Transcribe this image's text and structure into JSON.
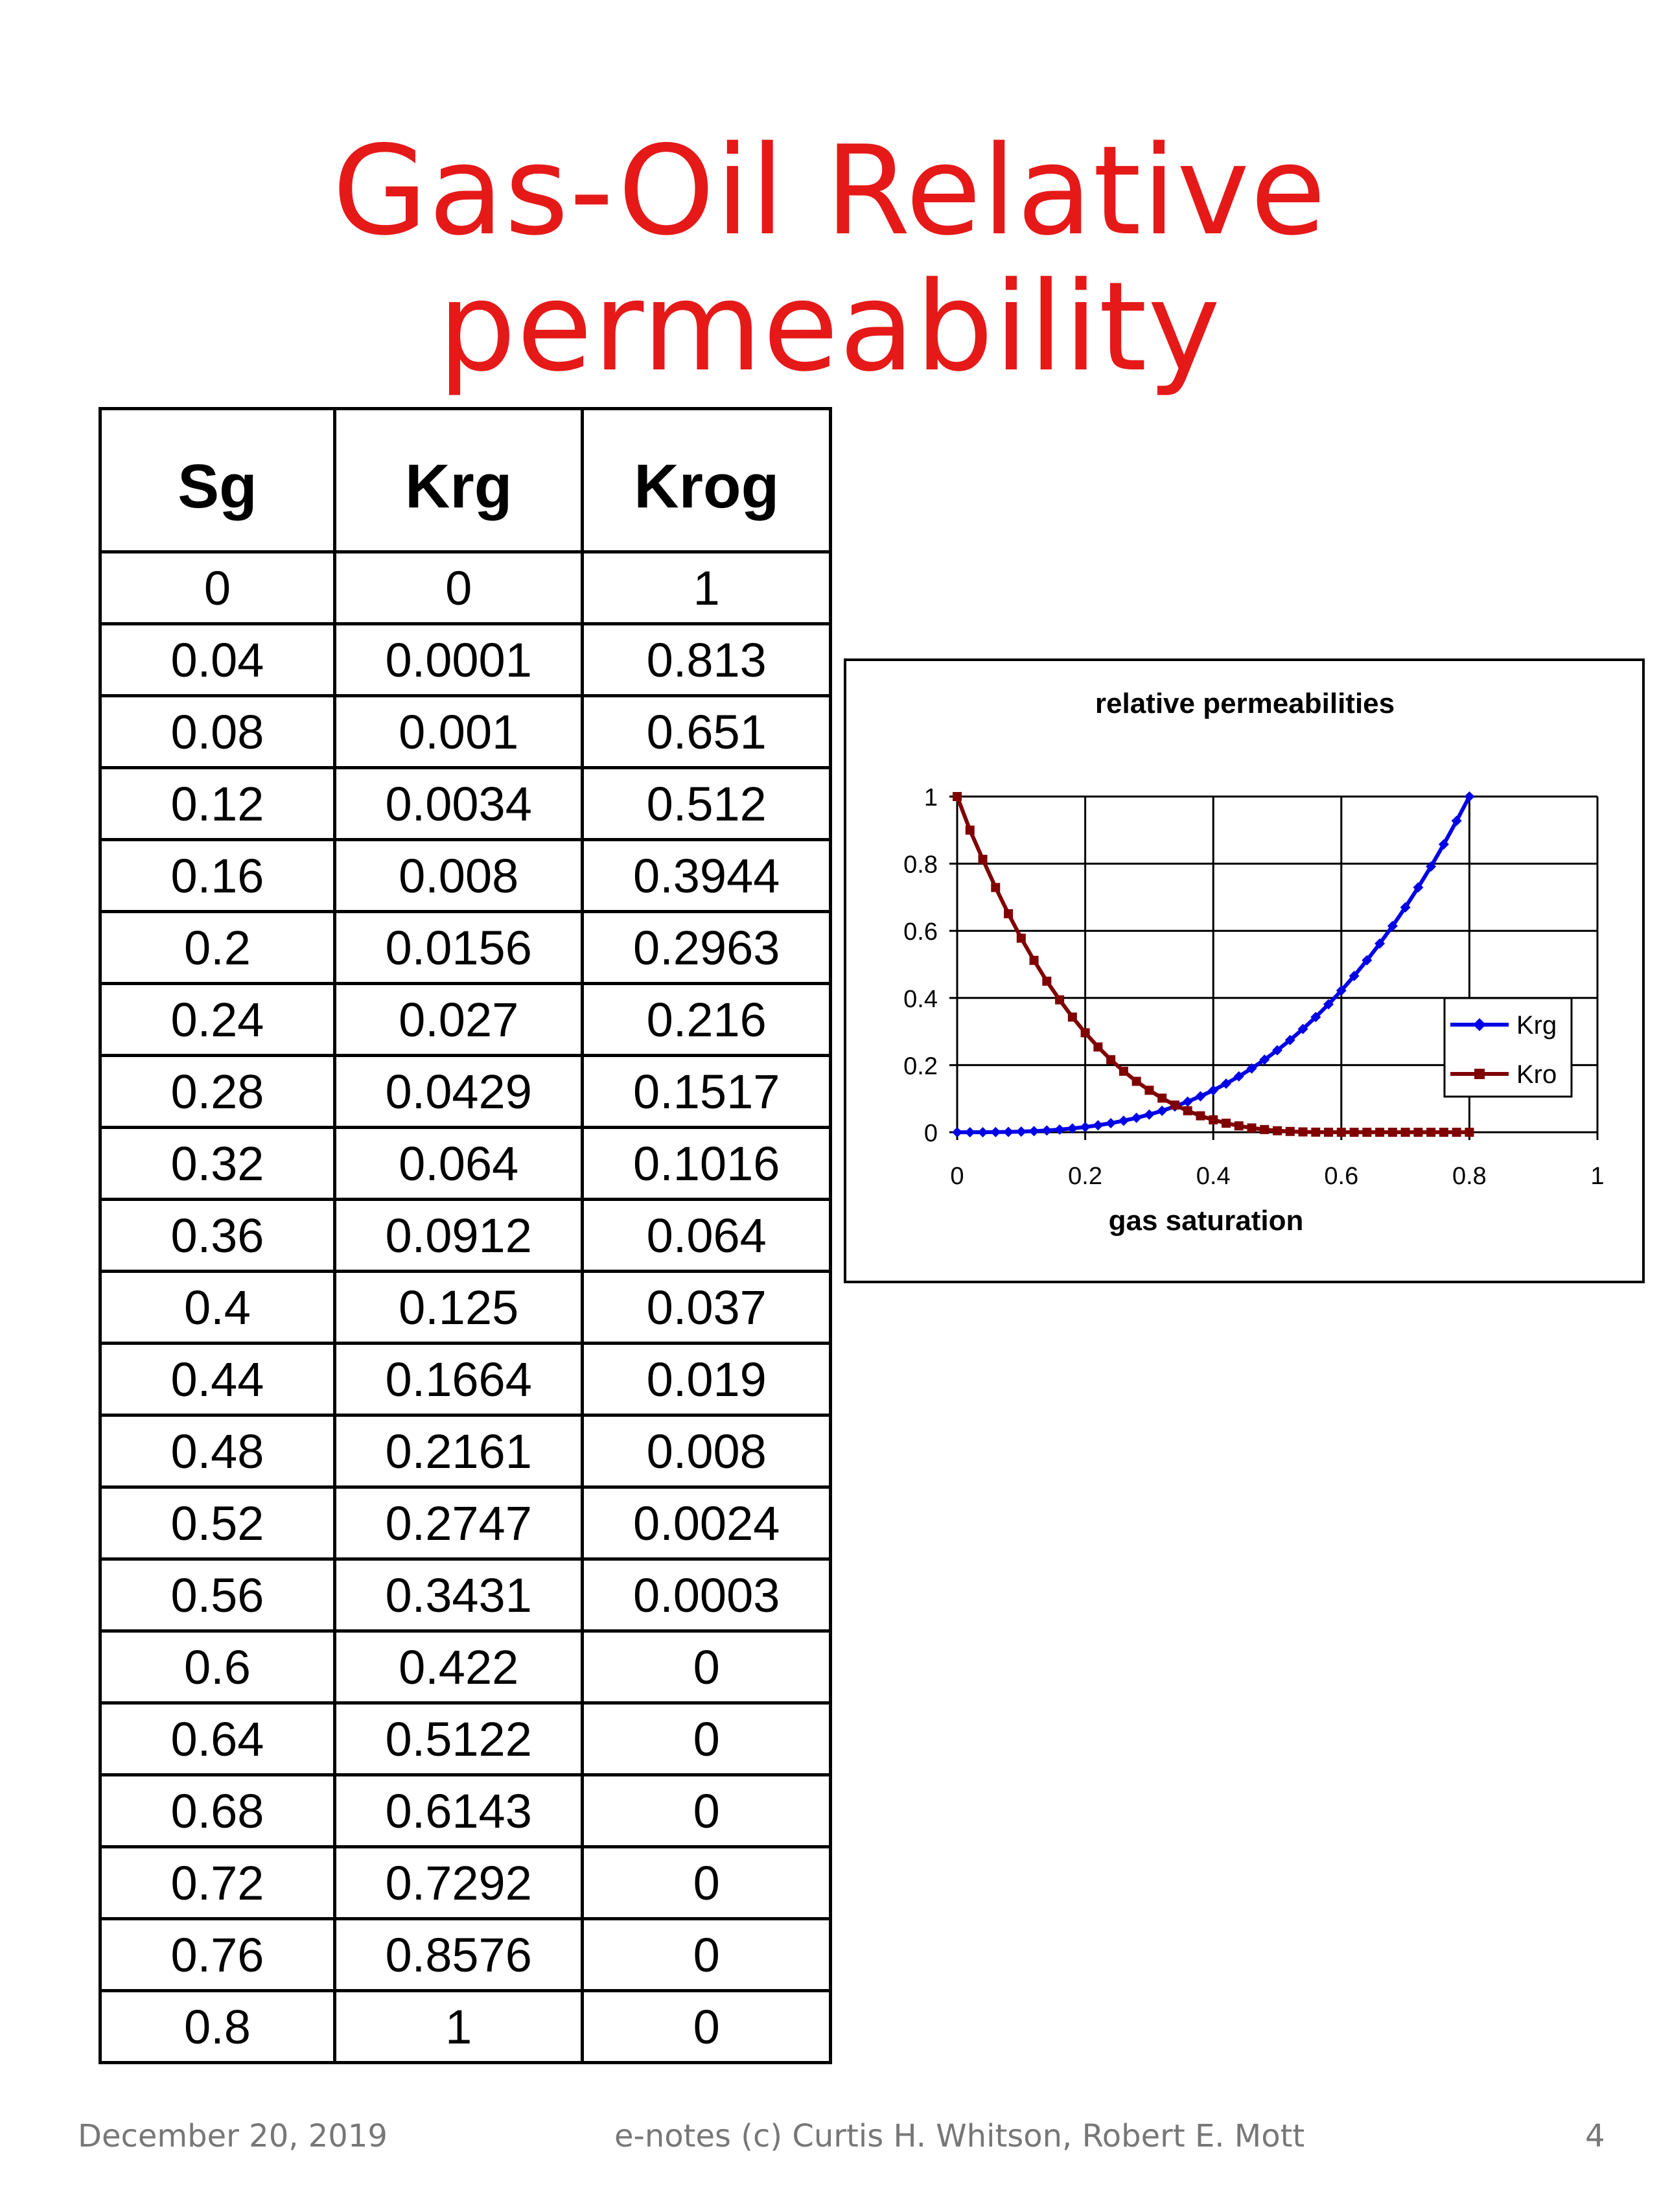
{
  "slide": {
    "title_line1": "Gas-Oil Relative",
    "title_line2": "permeability",
    "footer_date": "December 20, 2019",
    "footer_credit": "e-notes (c) Curtis H. Whitson, Robert E. Mott",
    "page_number": "4",
    "title_color": "#e61919"
  },
  "table": {
    "headers": [
      "Sg",
      "Krg",
      "Krog"
    ],
    "rows": [
      [
        "0",
        "0",
        "1"
      ],
      [
        "0.04",
        "0.0001",
        "0.813"
      ],
      [
        "0.08",
        "0.001",
        "0.651"
      ],
      [
        "0.12",
        "0.0034",
        "0.512"
      ],
      [
        "0.16",
        "0.008",
        "0.3944"
      ],
      [
        "0.2",
        "0.0156",
        "0.2963"
      ],
      [
        "0.24",
        "0.027",
        "0.216"
      ],
      [
        "0.28",
        "0.0429",
        "0.1517"
      ],
      [
        "0.32",
        "0.064",
        "0.1016"
      ],
      [
        "0.36",
        "0.0912",
        "0.064"
      ],
      [
        "0.4",
        "0.125",
        "0.037"
      ],
      [
        "0.44",
        "0.1664",
        "0.019"
      ],
      [
        "0.48",
        "0.2161",
        "0.008"
      ],
      [
        "0.52",
        "0.2747",
        "0.0024"
      ],
      [
        "0.56",
        "0.3431",
        "0.0003"
      ],
      [
        "0.6",
        "0.422",
        "0"
      ],
      [
        "0.64",
        "0.5122",
        "0"
      ],
      [
        "0.68",
        "0.6143",
        "0"
      ],
      [
        "0.72",
        "0.7292",
        "0"
      ],
      [
        "0.76",
        "0.8576",
        "0"
      ],
      [
        "0.8",
        "1",
        "0"
      ]
    ]
  },
  "chart_data": {
    "type": "line",
    "title": "relative permeabilities",
    "xlabel": "gas saturation",
    "ylabel": "",
    "xlim": [
      0,
      1
    ],
    "ylim": [
      0,
      1
    ],
    "xticks": [
      0,
      0.2,
      0.4,
      0.6,
      0.8,
      1
    ],
    "xtick_labels": [
      "0",
      "0.2",
      "0.4",
      "0.6",
      "0.8",
      "1"
    ],
    "yticks": [
      0,
      0.2,
      0.4,
      0.6,
      0.8,
      1
    ],
    "ytick_labels": [
      "0",
      "0.2",
      "0.4",
      "0.6",
      "0.8",
      "1"
    ],
    "grid": true,
    "legend": "right",
    "series": [
      {
        "name": "Krg",
        "color": "#0000e6",
        "marker": "diamond",
        "x": [
          0,
          0.02,
          0.04,
          0.06,
          0.08,
          0.1,
          0.12,
          0.14,
          0.16,
          0.18,
          0.2,
          0.22,
          0.24,
          0.26,
          0.28,
          0.3,
          0.32,
          0.34,
          0.36,
          0.38,
          0.4,
          0.42,
          0.44,
          0.46,
          0.48,
          0.5,
          0.52,
          0.54,
          0.56,
          0.58,
          0.6,
          0.62,
          0.64,
          0.66,
          0.68,
          0.7,
          0.72,
          0.74,
          0.76,
          0.78,
          0.8
        ],
        "y": [
          0,
          0,
          0.0001,
          0.0004,
          0.001,
          0.002,
          0.0034,
          0.0054,
          0.008,
          0.0114,
          0.0156,
          0.0208,
          0.027,
          0.0343,
          0.0429,
          0.0527,
          0.064,
          0.0768,
          0.0912,
          0.1072,
          0.125,
          0.1447,
          0.1664,
          0.19,
          0.2161,
          0.2441,
          0.2747,
          0.3077,
          0.3431,
          0.3812,
          0.422,
          0.4656,
          0.5122,
          0.5619,
          0.6143,
          0.6699,
          0.7292,
          0.7915,
          0.8576,
          0.9275,
          1
        ]
      },
      {
        "name": "Kro",
        "color": "#800000",
        "marker": "square",
        "x": [
          0,
          0.02,
          0.04,
          0.06,
          0.08,
          0.1,
          0.12,
          0.14,
          0.16,
          0.18,
          0.2,
          0.22,
          0.24,
          0.26,
          0.28,
          0.3,
          0.32,
          0.34,
          0.36,
          0.38,
          0.4,
          0.42,
          0.44,
          0.46,
          0.48,
          0.5,
          0.52,
          0.54,
          0.56,
          0.58,
          0.6,
          0.62,
          0.64,
          0.66,
          0.68,
          0.7,
          0.72,
          0.74,
          0.76,
          0.78,
          0.8
        ],
        "y": [
          1,
          0.9,
          0.813,
          0.729,
          0.651,
          0.578,
          0.512,
          0.45,
          0.3944,
          0.343,
          0.2963,
          0.254,
          0.216,
          0.1817,
          0.1517,
          0.125,
          0.1016,
          0.081,
          0.064,
          0.049,
          0.037,
          0.027,
          0.019,
          0.0128,
          0.008,
          0.0045,
          0.0024,
          0.001,
          0.0003,
          0.0001,
          0,
          0,
          0,
          0,
          0,
          0,
          0,
          0,
          0,
          0,
          0
        ]
      }
    ]
  }
}
